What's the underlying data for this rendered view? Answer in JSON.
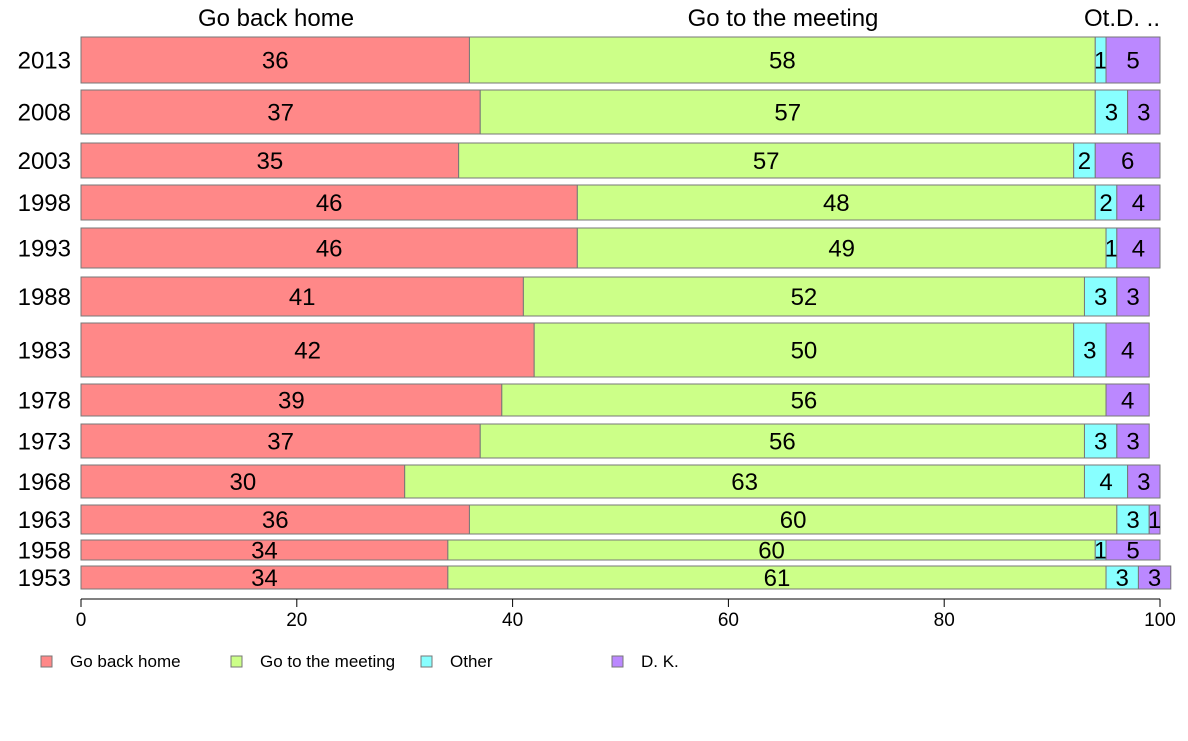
{
  "chart_data": {
    "type": "bar",
    "orientation": "horizontal",
    "stacked": true,
    "categories": [
      "2013",
      "2008",
      "2003",
      "1998",
      "1993",
      "1988",
      "1983",
      "1978",
      "1973",
      "1968",
      "1963",
      "1958",
      "1953"
    ],
    "series": [
      {
        "name": "Go back home",
        "color": "#ff8888",
        "values": [
          36,
          37,
          35,
          46,
          46,
          41,
          42,
          39,
          37,
          30,
          36,
          34,
          34
        ]
      },
      {
        "name": "Go to the meeting",
        "color": "#ccff88",
        "values": [
          58,
          57,
          57,
          48,
          49,
          52,
          50,
          56,
          56,
          63,
          60,
          60,
          61
        ]
      },
      {
        "name": "Other",
        "color": "#88ffff",
        "values": [
          1,
          3,
          2,
          2,
          1,
          3,
          3,
          0,
          3,
          4,
          3,
          1,
          3
        ]
      },
      {
        "name": "D. K.",
        "color": "#bb88ff",
        "values": [
          5,
          3,
          6,
          4,
          4,
          3,
          4,
          4,
          3,
          3,
          1,
          5,
          3
        ]
      }
    ],
    "top_labels": [
      "Go back home",
      "Go to the meeting",
      "Ot.D. .."
    ],
    "x_ticks": [
      0,
      20,
      40,
      60,
      80,
      100
    ],
    "xlim": [
      0,
      100
    ],
    "legend": {
      "placement": "bottom-left",
      "entries": [
        "Go back home",
        "Go to the meeting",
        "Other",
        "D. K."
      ]
    },
    "grid": false,
    "title": "",
    "xlabel": "",
    "ylabel": ""
  }
}
